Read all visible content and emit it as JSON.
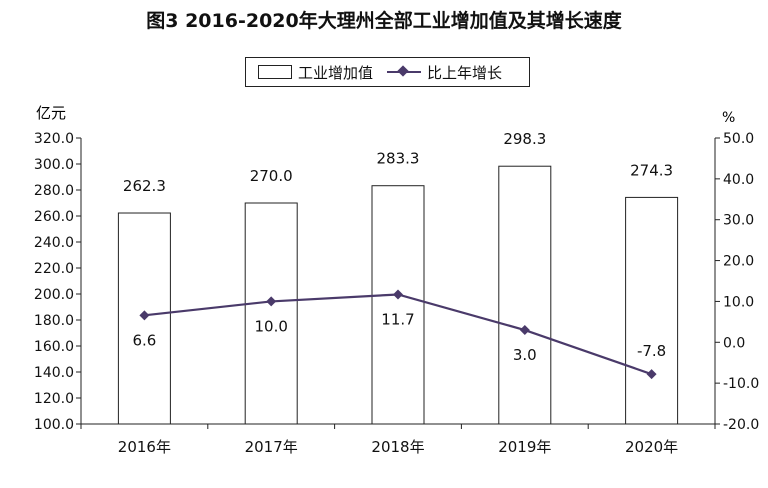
{
  "chart_data": {
    "type": "bar",
    "title": "图3  2016-2020年大理州全部工业增加值及其增长速度",
    "categories": [
      "2016年",
      "2017年",
      "2018年",
      "2019年",
      "2020年"
    ],
    "series": [
      {
        "name": "工业增加值",
        "type": "bar",
        "axis": "left",
        "values": [
          262.3,
          270.0,
          283.3,
          298.3,
          274.3
        ],
        "labels": [
          "262.3",
          "270.0",
          "283.3",
          "298.3",
          "274.3"
        ]
      },
      {
        "name": "比上年增长",
        "type": "line",
        "axis": "right",
        "values": [
          6.6,
          10.0,
          11.7,
          3.0,
          -7.8
        ],
        "labels": [
          "6.6",
          "10.0",
          "11.7",
          "3.0",
          "-7.8"
        ]
      }
    ],
    "ylabel_left": "亿元",
    "ylabel_right": "%",
    "ylim_left": [
      100,
      320
    ],
    "ylim_right": [
      -20,
      50
    ],
    "yticks_left": [
      "100.0",
      "120.0",
      "140.0",
      "160.0",
      "180.0",
      "200.0",
      "220.0",
      "240.0",
      "260.0",
      "280.0",
      "300.0",
      "320.0"
    ],
    "yticks_right": [
      "-20.0",
      "-10.0",
      "0.0",
      "10.0",
      "20.0",
      "30.0",
      "40.0",
      "50.0"
    ],
    "legend": "top-center",
    "grid": false,
    "colors": {
      "bar_fill": "#ffffff",
      "bar_stroke": "#222222",
      "line": "#4a3a6a"
    }
  }
}
